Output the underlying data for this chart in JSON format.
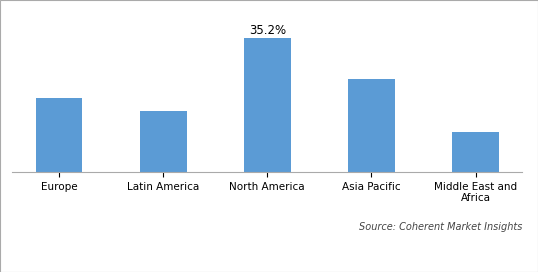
{
  "categories": [
    "Europe",
    "Latin America",
    "North America",
    "Asia Pacific",
    "Middle East and\nAfrica"
  ],
  "values": [
    19.5,
    16.0,
    35.2,
    24.5,
    10.5
  ],
  "bar_color": "#5B9BD5",
  "annotate_index": 2,
  "annotation_text": "35.2%",
  "annotation_fontsize": 8.5,
  "ylim": [
    0,
    42
  ],
  "source_text": "Source: Coherent Market Insights",
  "source_fontsize": 7,
  "tick_fontsize": 7.5,
  "background_color": "#FFFFFF",
  "bar_width": 0.45,
  "figure_width": 5.38,
  "figure_height": 2.72,
  "dpi": 100,
  "border_color": "#AAAAAA",
  "border_linewidth": 0.8
}
